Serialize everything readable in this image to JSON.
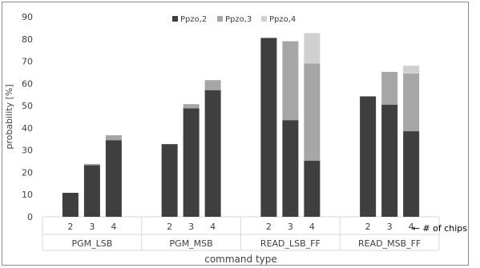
{
  "chart_data": {
    "type": "bar",
    "stacked": true,
    "title": "",
    "xlabel": "command type",
    "ylabel": "probability [%]",
    "ylim": [
      0,
      90
    ],
    "yticks": [
      0,
      10,
      20,
      30,
      40,
      50,
      60,
      70,
      80,
      90
    ],
    "grid": false,
    "legend_position": "top-center",
    "colors": {
      "Ppzo,2": "#3f3f3f",
      "Ppzo,3": "#a6a6a6",
      "Ppzo,4": "#d0d0d0",
      "axis": "#d9d9d9",
      "text": "#404040"
    },
    "series_names": [
      "Ppzo,2",
      "Ppzo,3",
      "Ppzo,4"
    ],
    "chips_annotation": "← # of chips",
    "groups": [
      {
        "name": "PGM_LSB",
        "bars": [
          {
            "chips": "2",
            "segments": [
              10.8,
              0,
              0
            ]
          },
          {
            "chips": "3",
            "segments": [
              23.2,
              0.6,
              0
            ]
          },
          {
            "chips": "4",
            "segments": [
              34.5,
              2.2,
              0
            ]
          }
        ]
      },
      {
        "name": "PGM_MSB",
        "bars": [
          {
            "chips": "2",
            "segments": [
              32.7,
              0,
              0
            ]
          },
          {
            "chips": "3",
            "segments": [
              48.8,
              1.9,
              0
            ]
          },
          {
            "chips": "4",
            "segments": [
              57.0,
              4.5,
              0
            ]
          }
        ]
      },
      {
        "name": "READ_LSB_FF",
        "bars": [
          {
            "chips": "2",
            "segments": [
              80.5,
              0,
              0
            ]
          },
          {
            "chips": "3",
            "segments": [
              43.5,
              35.5,
              0
            ]
          },
          {
            "chips": "4",
            "segments": [
              25.2,
              43.8,
              13.7
            ]
          }
        ]
      },
      {
        "name": "READ_MSB_FF",
        "bars": [
          {
            "chips": "2",
            "segments": [
              54.2,
              0,
              0
            ]
          },
          {
            "chips": "3",
            "segments": [
              50.5,
              14.7,
              0
            ]
          },
          {
            "chips": "4",
            "segments": [
              38.5,
              26.0,
              3.5
            ]
          }
        ]
      }
    ]
  }
}
